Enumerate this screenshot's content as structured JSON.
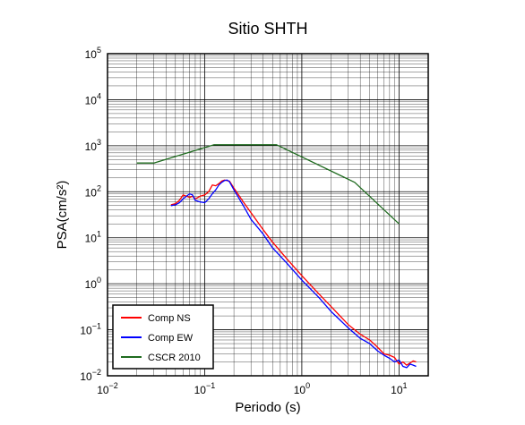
{
  "chart_data": {
    "type": "line",
    "title": "Sitio SHTH",
    "xlabel": "Periodo (s)",
    "ylabel": "PSA(cm/s²)",
    "x_scale": "log",
    "y_scale": "log",
    "xlim": [
      0.01,
      20
    ],
    "ylim": [
      0.01,
      100000
    ],
    "grid": true,
    "legend_position": "bottom-left",
    "x_ticks": [
      {
        "base": "10",
        "exp": "−2",
        "value": 0.01
      },
      {
        "base": "10",
        "exp": "−1",
        "value": 0.1
      },
      {
        "base": "10",
        "exp": "0",
        "value": 1
      },
      {
        "base": "10",
        "exp": "1",
        "value": 10
      }
    ],
    "y_ticks": [
      {
        "base": "10",
        "exp": "−2",
        "value": 0.01
      },
      {
        "base": "10",
        "exp": "−1",
        "value": 0.1
      },
      {
        "base": "10",
        "exp": "0",
        "value": 1
      },
      {
        "base": "10",
        "exp": "1",
        "value": 10
      },
      {
        "base": "10",
        "exp": "2",
        "value": 100
      },
      {
        "base": "10",
        "exp": "3",
        "value": 1000
      },
      {
        "base": "10",
        "exp": "4",
        "value": 10000
      },
      {
        "base": "10",
        "exp": "5",
        "value": 100000
      }
    ],
    "series": [
      {
        "name": "Comp NS",
        "color": "#ff0000",
        "points": [
          [
            0.045,
            52
          ],
          [
            0.05,
            55
          ],
          [
            0.055,
            65
          ],
          [
            0.06,
            85
          ],
          [
            0.065,
            80
          ],
          [
            0.07,
            75
          ],
          [
            0.075,
            80
          ],
          [
            0.08,
            70
          ],
          [
            0.09,
            80
          ],
          [
            0.1,
            85
          ],
          [
            0.11,
            100
          ],
          [
            0.12,
            140
          ],
          [
            0.13,
            135
          ],
          [
            0.14,
            150
          ],
          [
            0.15,
            170
          ],
          [
            0.16,
            180
          ],
          [
            0.18,
            170
          ],
          [
            0.2,
            120
          ],
          [
            0.25,
            60
          ],
          [
            0.3,
            35
          ],
          [
            0.4,
            15
          ],
          [
            0.5,
            8
          ],
          [
            0.7,
            3.5
          ],
          [
            1,
            1.5
          ],
          [
            1.5,
            0.6
          ],
          [
            2,
            0.32
          ],
          [
            3,
            0.13
          ],
          [
            4,
            0.08
          ],
          [
            5,
            0.06
          ],
          [
            6,
            0.042
          ],
          [
            7,
            0.03
          ],
          [
            8,
            0.028
          ],
          [
            9,
            0.025
          ],
          [
            10,
            0.018
          ],
          [
            11,
            0.02
          ],
          [
            12,
            0.017
          ],
          [
            13,
            0.019
          ],
          [
            14,
            0.021
          ],
          [
            15,
            0.02
          ]
        ]
      },
      {
        "name": "Comp EW",
        "color": "#0000ff",
        "points": [
          [
            0.045,
            50
          ],
          [
            0.05,
            52
          ],
          [
            0.055,
            58
          ],
          [
            0.06,
            70
          ],
          [
            0.065,
            80
          ],
          [
            0.07,
            90
          ],
          [
            0.075,
            85
          ],
          [
            0.08,
            65
          ],
          [
            0.09,
            60
          ],
          [
            0.1,
            58
          ],
          [
            0.11,
            70
          ],
          [
            0.12,
            90
          ],
          [
            0.13,
            110
          ],
          [
            0.14,
            140
          ],
          [
            0.15,
            160
          ],
          [
            0.16,
            175
          ],
          [
            0.17,
            180
          ],
          [
            0.18,
            165
          ],
          [
            0.2,
            110
          ],
          [
            0.25,
            50
          ],
          [
            0.3,
            25
          ],
          [
            0.4,
            12
          ],
          [
            0.5,
            6
          ],
          [
            0.7,
            2.8
          ],
          [
            1,
            1.2
          ],
          [
            1.5,
            0.5
          ],
          [
            2,
            0.25
          ],
          [
            3,
            0.11
          ],
          [
            4,
            0.065
          ],
          [
            5,
            0.05
          ],
          [
            6,
            0.035
          ],
          [
            7,
            0.028
          ],
          [
            8,
            0.024
          ],
          [
            9,
            0.02
          ],
          [
            10,
            0.022
          ],
          [
            11,
            0.016
          ],
          [
            12,
            0.015
          ],
          [
            13,
            0.018
          ],
          [
            14,
            0.017
          ],
          [
            15,
            0.016
          ]
        ]
      },
      {
        "name": "CSCR 2010",
        "color": "#1f6b1f",
        "points": [
          [
            0.02,
            420
          ],
          [
            0.03,
            420
          ],
          [
            0.125,
            1050
          ],
          [
            0.55,
            1050
          ],
          [
            3.5,
            160
          ],
          [
            10,
            20
          ]
        ]
      }
    ]
  }
}
